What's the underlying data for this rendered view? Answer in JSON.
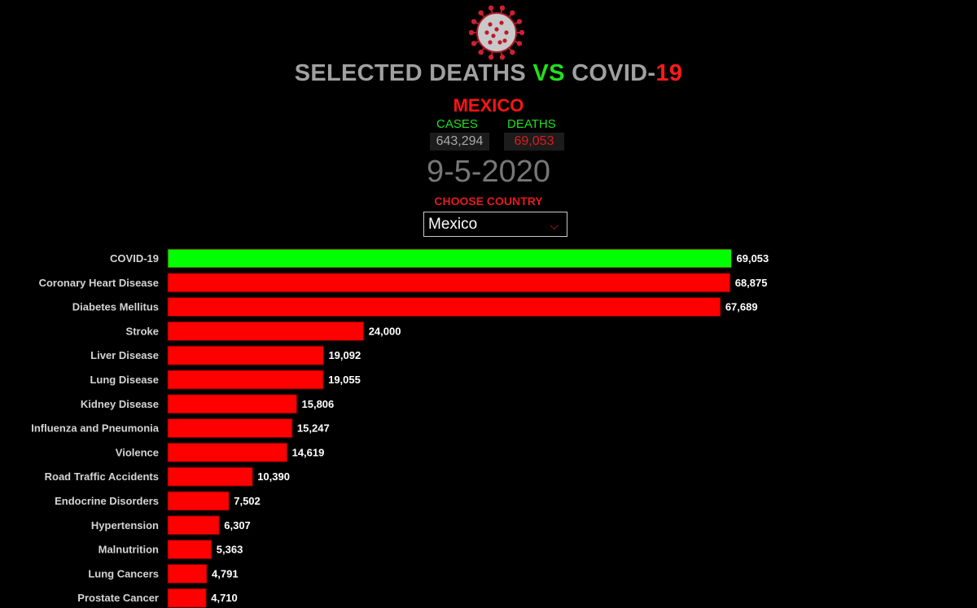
{
  "header": {
    "title_part1": "SELECTED DEATHS ",
    "title_vs": "VS",
    "title_part2": " COVID-",
    "title_19": "19",
    "logo_icon": "coronavirus-icon"
  },
  "country": {
    "name": "MEXICO",
    "cases_label": "CASES",
    "deaths_label": "DEATHS",
    "cases_value": "643,294",
    "deaths_value": "69,053"
  },
  "date": "9-5-2020",
  "selector": {
    "label": "CHOOSE COUNTRY",
    "selected": "Mexico",
    "arrow_icon": "chevron-down-icon"
  },
  "colors": {
    "covid_bar": "#00ff00",
    "other_bars": "#ff0000",
    "background": "#000000"
  },
  "chart_data": {
    "type": "bar",
    "orientation": "horizontal",
    "categories": [
      "COVID-19",
      "Coronary Heart Disease",
      "Diabetes Mellitus",
      "Stroke",
      "Liver Disease",
      "Lung Disease",
      "Kidney Disease",
      "Influenza and Pneumonia",
      "Violence",
      "Road Traffic Accidents",
      "Endocrine Disorders",
      "Hypertension",
      "Malnutrition",
      "Lung Cancers",
      "Prostate Cancer"
    ],
    "values": [
      69053,
      68875,
      67689,
      24000,
      19092,
      19055,
      15806,
      15247,
      14619,
      10390,
      7502,
      6307,
      5363,
      4791,
      4710
    ],
    "value_labels": [
      "69,053",
      "68,875",
      "67,689",
      "24,000",
      "19,092",
      "19,055",
      "15,806",
      "15,247",
      "14,619",
      "10,390",
      "7,502",
      "6,307",
      "5,363",
      "4,791",
      "4,710"
    ],
    "highlight_index": 0,
    "title": "",
    "xlabel": "",
    "ylabel": "",
    "xlim": [
      0,
      69800
    ],
    "grid": false,
    "legend": "none"
  }
}
